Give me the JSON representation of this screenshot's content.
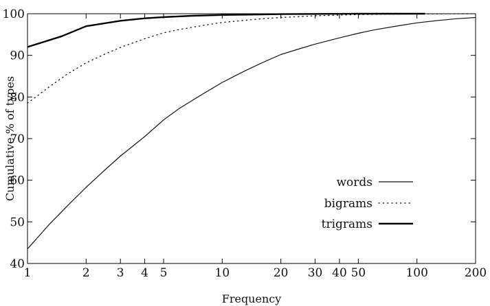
{
  "chart_data": {
    "type": "line",
    "xlabel": "Frequency",
    "ylabel": "Cumulative % of types",
    "x_scale": "log",
    "xlim": [
      1,
      200
    ],
    "ylim": [
      40,
      100
    ],
    "x_ticks": [
      1,
      2,
      3,
      4,
      5,
      10,
      20,
      30,
      40,
      50,
      100,
      200
    ],
    "x_tick_labels": [
      "1",
      "2",
      "3",
      "4",
      "5",
      "10",
      "20",
      "30",
      "40",
      "50",
      "100",
      "200"
    ],
    "y_ticks": [
      40,
      50,
      60,
      70,
      80,
      90,
      100
    ],
    "y_tick_labels": [
      "40",
      "50",
      "60",
      "70",
      "80",
      "90",
      "100"
    ],
    "grid": false,
    "legend_position": "lower-right",
    "series": [
      {
        "name": "words",
        "style": "solid-thin",
        "x": [
          1,
          1.3,
          1.6,
          2,
          2.5,
          3,
          4,
          5,
          6,
          8,
          10,
          13,
          16,
          20,
          25,
          30,
          40,
          50,
          60,
          80,
          100,
          130,
          160,
          200
        ],
        "y": [
          43.5,
          49.5,
          53.8,
          58.3,
          62.5,
          65.8,
          70.5,
          74.5,
          77.2,
          80.8,
          83.5,
          86.2,
          88.2,
          90.2,
          91.6,
          92.7,
          94.2,
          95.3,
          96.1,
          97.1,
          97.8,
          98.4,
          98.8,
          99.1
        ]
      },
      {
        "name": "bigrams",
        "style": "dotted",
        "x": [
          1,
          1.3,
          1.6,
          2,
          2.5,
          3,
          4,
          5,
          6,
          8,
          10,
          13,
          16,
          20,
          30,
          50,
          100,
          200
        ],
        "y": [
          78.5,
          82.5,
          85.5,
          88.2,
          90.3,
          91.9,
          94.0,
          95.4,
          96.2,
          97.2,
          97.9,
          98.4,
          98.8,
          99.1,
          99.5,
          99.8,
          99.95,
          100
        ]
      },
      {
        "name": "trigrams",
        "style": "solid-thick",
        "x": [
          1,
          1.5,
          2,
          3,
          4,
          5,
          7,
          10,
          15,
          20,
          30,
          50,
          110
        ],
        "y": [
          92.0,
          94.6,
          97.0,
          98.3,
          98.9,
          99.2,
          99.5,
          99.7,
          99.8,
          99.9,
          99.95,
          100,
          100
        ]
      }
    ]
  }
}
